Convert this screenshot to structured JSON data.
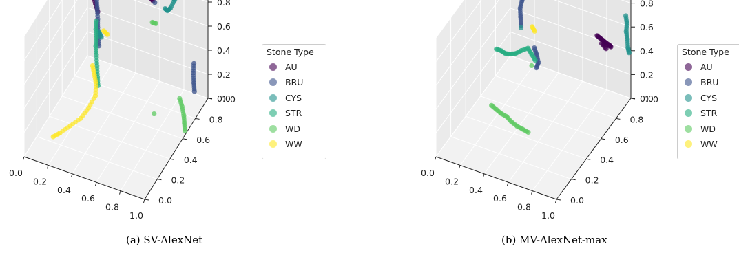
{
  "legend_title": "Stone Type",
  "classes": [
    {
      "label": "AU",
      "color": "#440154"
    },
    {
      "label": "BRU",
      "color": "#3b528b"
    },
    {
      "label": "CYS",
      "color": "#21918c"
    },
    {
      "label": "STR",
      "color": "#27ad81"
    },
    {
      "label": "WD",
      "color": "#5ec962"
    },
    {
      "label": "WW",
      "color": "#fde725"
    }
  ],
  "chart_data": [
    {
      "type": "scatter",
      "subtitle": "(a) SV-AlexNet",
      "projection": "3d",
      "xlim": [
        0,
        1
      ],
      "ylim": [
        0,
        1
      ],
      "zlim": [
        0,
        1
      ],
      "ticks": [
        0.0,
        0.2,
        0.4,
        0.6,
        0.8,
        1.0
      ],
      "tick_labels": [
        "0.0",
        "0.2",
        "0.4",
        "0.6",
        "0.8",
        "1.0"
      ],
      "grid": true,
      "legend_placement": "right",
      "clusters": [
        {
          "class": "AU",
          "points": [
            [
              0.05,
              0.85,
              0.85
            ],
            [
              0.07,
              0.85,
              0.78
            ],
            [
              0.1,
              0.86,
              0.72
            ],
            [
              0.12,
              0.85,
              0.68
            ],
            [
              0.15,
              0.84,
              0.62
            ],
            [
              0.17,
              0.84,
              0.56
            ],
            [
              0.08,
              0.84,
              0.75
            ],
            [
              0.13,
              0.86,
              0.66
            ],
            [
              0.54,
              0.95,
              0.72
            ],
            [
              0.57,
              0.95,
              0.7
            ]
          ]
        },
        {
          "class": "BRU",
          "points": [
            [
              0.16,
              0.84,
              0.67
            ],
            [
              0.17,
              0.83,
              0.6
            ],
            [
              0.18,
              0.82,
              0.52
            ],
            [
              0.18,
              0.82,
              0.45
            ],
            [
              0.19,
              0.81,
              0.38
            ],
            [
              0.2,
              0.8,
              0.32
            ],
            [
              0.58,
              0.96,
              0.68
            ],
            [
              0.92,
              0.93,
              0.32
            ],
            [
              0.92,
              0.92,
              0.25
            ],
            [
              0.93,
              0.91,
              0.18
            ],
            [
              0.94,
              0.9,
              0.12
            ]
          ]
        },
        {
          "class": "CYS",
          "points": [
            [
              0.64,
              0.98,
              0.83
            ],
            [
              0.66,
              0.98,
              0.8
            ],
            [
              0.69,
              0.97,
              0.79
            ],
            [
              0.72,
              0.96,
              0.78
            ],
            [
              0.75,
              0.95,
              0.77
            ],
            [
              0.72,
              0.94,
              0.7
            ],
            [
              0.69,
              0.95,
              0.66
            ],
            [
              0.66,
              0.97,
              0.65
            ],
            [
              0.2,
              0.8,
              0.44
            ],
            [
              0.22,
              0.8,
              0.4
            ]
          ]
        },
        {
          "class": "STR",
          "points": [
            [
              0.18,
              0.8,
              0.52
            ],
            [
              0.18,
              0.79,
              0.46
            ],
            [
              0.19,
              0.78,
              0.4
            ],
            [
              0.19,
              0.77,
              0.34
            ],
            [
              0.2,
              0.76,
              0.28
            ],
            [
              0.21,
              0.75,
              0.2
            ],
            [
              0.22,
              0.74,
              0.12
            ],
            [
              0.23,
              0.73,
              0.06
            ]
          ]
        },
        {
          "class": "WD",
          "points": [
            [
              0.58,
              0.92,
              0.55
            ],
            [
              0.61,
              0.92,
              0.55
            ],
            [
              0.7,
              0.72,
              0.0
            ],
            [
              0.87,
              0.8,
              0.12
            ],
            [
              0.89,
              0.8,
              0.06
            ],
            [
              0.91,
              0.79,
              0.0
            ],
            [
              0.92,
              0.78,
              -0.05
            ],
            [
              0.93,
              0.77,
              -0.1
            ]
          ]
        },
        {
          "class": "WW",
          "points": [
            [
              0.2,
              0.7,
              0.24
            ],
            [
              0.22,
              0.69,
              0.18
            ],
            [
              0.24,
              0.68,
              0.12
            ],
            [
              0.25,
              0.65,
              0.05
            ],
            [
              0.22,
              0.6,
              -0.02
            ],
            [
              0.18,
              0.55,
              -0.08
            ],
            [
              0.12,
              0.5,
              -0.12
            ],
            [
              0.06,
              0.45,
              -0.16
            ],
            [
              0.02,
              0.42,
              -0.18
            ],
            [
              0.25,
              0.78,
              0.48
            ],
            [
              0.28,
              0.78,
              0.46
            ]
          ]
        }
      ]
    },
    {
      "type": "scatter",
      "subtitle": "(b) MV-AlexNet-max",
      "projection": "3d",
      "xlim": [
        0,
        1
      ],
      "ylim": [
        0,
        1
      ],
      "zlim": [
        0,
        1
      ],
      "ticks": [
        0.0,
        0.2,
        0.4,
        0.6,
        0.8,
        1.0
      ],
      "tick_labels": [
        "0.0",
        "0.2",
        "0.4",
        "0.6",
        "0.8",
        "1.0"
      ],
      "grid": true,
      "legend_placement": "right",
      "clusters": [
        {
          "class": "AU",
          "points": [
            [
              0.75,
              0.95,
              0.48
            ],
            [
              0.78,
              0.94,
              0.48
            ],
            [
              0.81,
              0.93,
              0.48
            ],
            [
              0.84,
              0.92,
              0.48
            ],
            [
              0.87,
              0.92,
              0.47
            ],
            [
              0.89,
              0.91,
              0.47
            ],
            [
              0.8,
              0.93,
              0.45
            ],
            [
              0.85,
              0.91,
              0.44
            ]
          ]
        },
        {
          "class": "BRU",
          "points": [
            [
              0.2,
              0.85,
              0.72
            ],
            [
              0.19,
              0.85,
              0.66
            ],
            [
              0.18,
              0.84,
              0.6
            ],
            [
              0.19,
              0.83,
              0.54
            ],
            [
              0.2,
              0.82,
              0.48
            ],
            [
              0.31,
              0.82,
              0.33
            ],
            [
              0.33,
              0.82,
              0.28
            ],
            [
              0.35,
              0.81,
              0.23
            ],
            [
              0.34,
              0.8,
              0.19
            ]
          ]
        },
        {
          "class": "CYS",
          "points": [
            [
              0.97,
              0.98,
              0.7
            ],
            [
              0.98,
              0.98,
              0.64
            ],
            [
              0.98,
              0.97,
              0.58
            ],
            [
              0.99,
              0.97,
              0.52
            ],
            [
              1.0,
              0.96,
              0.46
            ],
            [
              1.01,
              0.96,
              0.42
            ],
            [
              0.2,
              0.82,
              0.46
            ]
          ]
        },
        {
          "class": "STR",
          "points": [
            [
              0.02,
              0.78,
              0.25
            ],
            [
              0.06,
              0.78,
              0.25
            ],
            [
              0.1,
              0.77,
              0.25
            ],
            [
              0.14,
              0.77,
              0.26
            ],
            [
              0.18,
              0.78,
              0.27
            ],
            [
              0.22,
              0.79,
              0.3
            ],
            [
              0.27,
              0.8,
              0.33
            ],
            [
              0.3,
              0.8,
              0.29
            ],
            [
              0.33,
              0.8,
              0.25
            ]
          ]
        },
        {
          "class": "WD",
          "points": [
            [
              0.14,
              0.52,
              0.04
            ],
            [
              0.18,
              0.52,
              0.02
            ],
            [
              0.22,
              0.52,
              0.0
            ],
            [
              0.26,
              0.53,
              -0.02
            ],
            [
              0.3,
              0.53,
              -0.05
            ],
            [
              0.34,
              0.54,
              -0.08
            ],
            [
              0.38,
              0.55,
              -0.1
            ],
            [
              0.42,
              0.56,
              -0.12
            ],
            [
              0.35,
              0.72,
              0.28
            ]
          ]
        },
        {
          "class": "WW",
          "points": [
            [
              0.28,
              0.94,
              1.3
            ],
            [
              0.31,
              0.95,
              1.28
            ],
            [
              0.28,
              0.93,
              1.2
            ],
            [
              0.27,
              0.92,
              1.1
            ],
            [
              0.26,
              0.91,
              1.0
            ],
            [
              0.25,
              0.9,
              0.92
            ],
            [
              0.24,
              0.89,
              0.84
            ],
            [
              0.23,
              0.88,
              0.77
            ],
            [
              0.22,
              0.87,
              0.72
            ],
            [
              0.28,
              0.84,
              0.48
            ],
            [
              0.3,
              0.84,
              0.45
            ]
          ]
        }
      ]
    }
  ]
}
